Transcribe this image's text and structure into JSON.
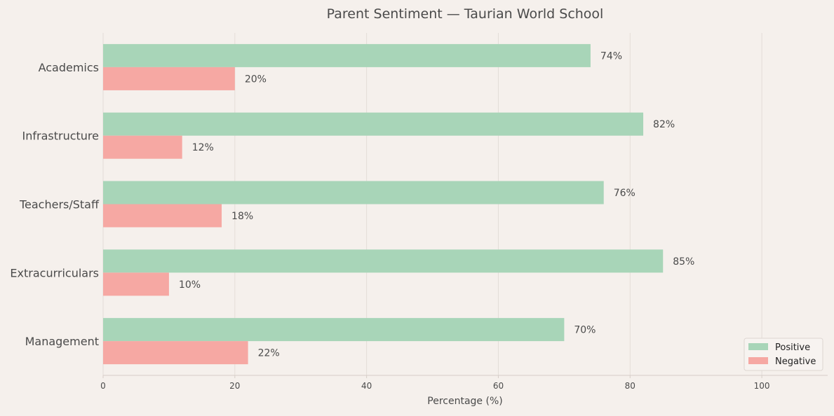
{
  "chart_data": {
    "type": "bar",
    "orientation": "horizontal",
    "title": "Parent Sentiment — Taurian World School",
    "xlabel": "Percentage (%)",
    "ylabel": "",
    "categories": [
      "Academics",
      "Infrastructure",
      "Teachers/Staff",
      "Extracurriculars",
      "Management"
    ],
    "series": [
      {
        "name": "Positive",
        "values": [
          74,
          82,
          76,
          85,
          70
        ],
        "color": "#a8d5b8"
      },
      {
        "name": "Negative",
        "values": [
          20,
          12,
          18,
          10,
          22
        ],
        "color": "#f6a8a3"
      }
    ],
    "value_label_suffix": "%",
    "xlim": [
      0,
      110
    ],
    "xticks": [
      0,
      20,
      40,
      60,
      80,
      100
    ],
    "grid": "vertical",
    "legend_position": "lower-right",
    "colors": {
      "background": "#f5f0ec",
      "grid": "#e4ddd8",
      "text": "#4a4a4a",
      "axis": "#d6cdc7"
    }
  }
}
